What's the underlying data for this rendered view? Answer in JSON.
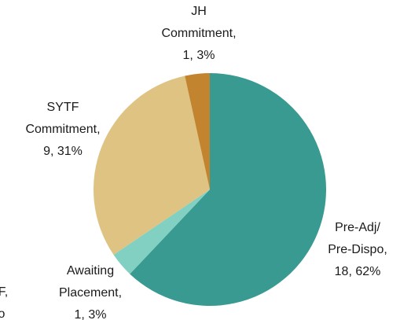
{
  "chart_data": {
    "type": "pie",
    "categories": [
      [
        "Pre-Adj/",
        "Pre-Dispo,"
      ],
      [
        "Awaiting",
        "Placement,"
      ],
      [
        "SYTF",
        "Commitment,"
      ],
      [
        "JH",
        "Commitment,"
      ]
    ],
    "values": [
      18,
      1,
      9,
      1
    ],
    "value_labels": [
      "18, 62%",
      "1, 3%",
      "9, 31%",
      "1, 3%"
    ],
    "colors": [
      "#389a91",
      "#82d0c2",
      "#dfc383",
      "#c3842f"
    ],
    "clipped_text": [
      "F,",
      "o"
    ]
  }
}
